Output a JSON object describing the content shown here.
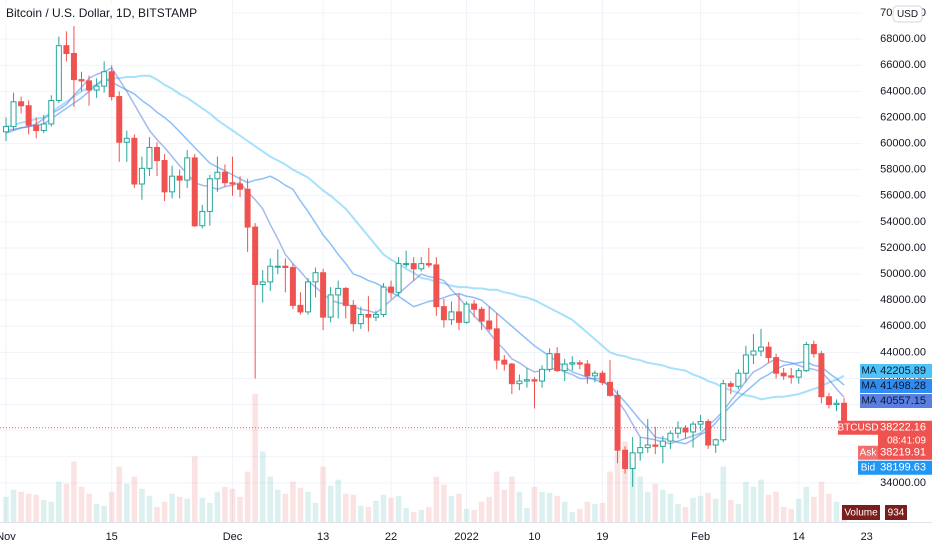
{
  "chart_data": {
    "type": "candlestick",
    "title": "Bitcoin / U.S. Dollar, 1D, BITSTAMP",
    "currency": "USD",
    "categories": [
      "Nov",
      null,
      null,
      null,
      null,
      null,
      null,
      null,
      null,
      null,
      null,
      null,
      null,
      null,
      "15",
      null,
      null,
      null,
      null,
      null,
      null,
      null,
      null,
      null,
      null,
      null,
      null,
      null,
      null,
      null,
      "Dec",
      null,
      null,
      null,
      null,
      null,
      null,
      null,
      null,
      null,
      null,
      null,
      "13",
      null,
      null,
      null,
      null,
      null,
      null,
      null,
      null,
      "22",
      null,
      null,
      null,
      null,
      null,
      null,
      null,
      null,
      null,
      "2022",
      null,
      null,
      null,
      null,
      null,
      null,
      null,
      null,
      "10",
      null,
      null,
      null,
      null,
      null,
      null,
      null,
      null,
      "19",
      null,
      null,
      null,
      null,
      null,
      null,
      null,
      null,
      null,
      null,
      null,
      null,
      "Feb",
      null,
      null,
      null,
      null,
      null,
      null,
      null,
      null,
      null,
      null,
      null,
      null,
      "14",
      null,
      null,
      null,
      null,
      null,
      null,
      null,
      null,
      "23"
    ],
    "open": [
      60900,
      61300,
      63200,
      62900,
      61400,
      61000,
      61500,
      63300,
      67500,
      66900,
      64900,
      64800,
      64100,
      64400,
      65500,
      63600,
      60100,
      60400,
      56900,
      58100,
      59700,
      58700,
      56300,
      57500,
      57200,
      58900,
      53700,
      54800,
      57300,
      57800,
      57000,
      56900,
      56500,
      53600,
      49200,
      49400,
      50600,
      50600,
      50500,
      47600,
      47100,
      49400,
      50100,
      46700,
      48400,
      48900,
      47600,
      46200,
      46900,
      46700,
      46900,
      49000,
      48600,
      50800,
      50800,
      50400,
      50800,
      50700,
      47500,
      46500,
      47100,
      46300,
      47700,
      47300,
      46400,
      45800,
      43400,
      43100,
      41600,
      41800,
      41900,
      41800,
      42700,
      43900,
      42600,
      43100,
      43200,
      43100,
      42200,
      42400,
      41700,
      40700,
      36500,
      35100,
      36300,
      36700,
      36900,
      36800,
      37200,
      37800,
      38200,
      37900,
      38500,
      38700,
      36900,
      37300,
      41600,
      41400,
      42400,
      43800,
      44100,
      44400,
      43600,
      42400,
      42200,
      42100,
      42600,
      44600,
      43900,
      40600,
      40000,
      40100,
      null,
      null,
      null
    ],
    "high": [
      62000,
      63900,
      63600,
      63300,
      62000,
      62200,
      63700,
      68200,
      68600,
      69000,
      65500,
      65200,
      65000,
      66300,
      66000,
      64000,
      61000,
      60700,
      59000,
      60500,
      60100,
      59200,
      58300,
      58000,
      59500,
      59200,
      55300,
      57600,
      59000,
      58400,
      59000,
      57500,
      57300,
      53900,
      50300,
      51200,
      51900,
      51200,
      50800,
      48600,
      49700,
      50500,
      50400,
      49000,
      49500,
      49000,
      48000,
      47500,
      48300,
      47200,
      49300,
      49500,
      51300,
      51800,
      51300,
      51300,
      52000,
      51300,
      48100,
      47900,
      48500,
      47900,
      48000,
      47500,
      47500,
      47000,
      43800,
      43200,
      42300,
      42800,
      42100,
      43000,
      44300,
      44400,
      43500,
      43700,
      43400,
      43400,
      42600,
      42600,
      43400,
      41100,
      36800,
      37500,
      37500,
      38900,
      38300,
      37600,
      38000,
      38700,
      38400,
      38700,
      39200,
      38900,
      37400,
      41900,
      41800,
      42700,
      44500,
      45400,
      45800,
      44800,
      43900,
      42800,
      42800,
      42800,
      44800,
      44900,
      44100,
      40900,
      40400,
      40500,
      null,
      null,
      null
    ],
    "low": [
      60200,
      61000,
      62300,
      60700,
      60400,
      60800,
      61300,
      63100,
      66300,
      62800,
      64000,
      62900,
      63500,
      63900,
      63300,
      58600,
      58600,
      56600,
      55700,
      57500,
      57500,
      55600,
      55800,
      55800,
      56600,
      53600,
      53500,
      53700,
      56300,
      56700,
      56000,
      55900,
      51700,
      42000,
      47800,
      48700,
      50000,
      48600,
      47300,
      46900,
      46900,
      48200,
      45700,
      46300,
      46600,
      46600,
      45600,
      45800,
      45600,
      46400,
      46700,
      48100,
      48300,
      50500,
      49500,
      50200,
      50500,
      46800,
      45900,
      46100,
      45700,
      46200,
      46700,
      45700,
      45600,
      42700,
      42600,
      40800,
      41100,
      41300,
      39700,
      41300,
      42500,
      42500,
      41800,
      42600,
      42700,
      41600,
      41700,
      41500,
      40600,
      35500,
      34700,
      33700,
      35700,
      36300,
      36200,
      35500,
      36600,
      37400,
      37400,
      36700,
      38000,
      36600,
      36300,
      37100,
      40800,
      41200,
      41700,
      43100,
      43700,
      43200,
      42000,
      41900,
      41600,
      41600,
      42500,
      43600,
      40100,
      39700,
      39500,
      38000,
      null,
      null,
      null
    ],
    "close": [
      61300,
      63200,
      62900,
      61400,
      61000,
      61500,
      63300,
      67500,
      66900,
      64900,
      64800,
      64100,
      64400,
      65500,
      63600,
      60100,
      60400,
      56900,
      58100,
      59700,
      58700,
      56300,
      57500,
      57200,
      58900,
      53700,
      54800,
      57300,
      57800,
      57000,
      56900,
      56500,
      53600,
      49200,
      49400,
      50600,
      50600,
      50500,
      47600,
      47100,
      49400,
      50100,
      46700,
      48400,
      48900,
      47600,
      46200,
      46900,
      46700,
      46900,
      49000,
      48600,
      50800,
      50800,
      50400,
      50800,
      50700,
      47500,
      46500,
      47100,
      46300,
      47700,
      47300,
      46400,
      45800,
      43400,
      43100,
      41600,
      41800,
      41900,
      41800,
      42700,
      43900,
      42600,
      43100,
      43200,
      43100,
      42200,
      42400,
      41700,
      40700,
      36500,
      35100,
      36300,
      36700,
      36900,
      36800,
      37200,
      37800,
      38200,
      37900,
      38500,
      38700,
      36900,
      37300,
      41600,
      41400,
      42400,
      43800,
      44100,
      44400,
      43600,
      42400,
      42200,
      42100,
      42600,
      44600,
      43900,
      40600,
      40000,
      40100,
      38222.16,
      null,
      null,
      null
    ],
    "volume": [
      2500,
      3200,
      3000,
      2800,
      2700,
      2200,
      2000,
      4000,
      3800,
      6000,
      3500,
      2800,
      1800,
      1600,
      3000,
      5500,
      3800,
      4500,
      3300,
      2600,
      1500,
      2000,
      2800,
      2500,
      2300,
      6500,
      2400,
      1900,
      3000,
      3500,
      3300,
      2500,
      5000,
      12700,
      7000,
      4500,
      3200,
      2800,
      4000,
      3400,
      3000,
      1900,
      5500,
      3600,
      4200,
      2800,
      2700,
      1600,
      1500,
      2100,
      2700,
      2400,
      2600,
      1400,
      1000,
      1200,
      1500,
      4500,
      3700,
      2600,
      2800,
      1300,
      1200,
      2000,
      2500,
      5000,
      3200,
      4500,
      3000,
      1400,
      3500,
      3000,
      2900,
      2600,
      2000,
      1000,
      1300,
      2000,
      1800,
      1900,
      5000,
      7000,
      8000,
      6000,
      4500,
      3000,
      3800,
      3200,
      2800,
      1800,
      1500,
      2400,
      2600,
      2900,
      2300,
      5500,
      2200,
      1800,
      4000,
      3500,
      4200,
      2700,
      3000,
      1500,
      1300,
      2300,
      3500,
      2500,
      4000,
      2800,
      2000,
      934,
      null,
      null,
      null
    ],
    "volume_label": "Volume",
    "up_color": "#26a69a",
    "down_color": "#ef5350",
    "series": [
      {
        "name": "MA",
        "color": "#4fc3f7",
        "values": [
          61300,
          61400,
          61600,
          61700,
          61900,
          62000,
          62400,
          62800,
          63200,
          63600,
          64000,
          64300,
          64500,
          64800,
          65000,
          65000,
          65100,
          65100,
          65200,
          65200,
          64900,
          64500,
          64200,
          63800,
          63500,
          63100,
          62700,
          62300,
          61800,
          61400,
          61000,
          60600,
          60200,
          59800,
          59400,
          59000,
          58700,
          58400,
          58000,
          57700,
          57400,
          56900,
          56400,
          56000,
          55500,
          55000,
          54300,
          53600,
          52900,
          52200,
          51500,
          51100,
          50800,
          50400,
          50100,
          49700,
          49600,
          49400,
          49300,
          49100,
          49000,
          49000,
          48900,
          48900,
          48800,
          48800,
          48600,
          48500,
          48300,
          48200,
          48000,
          47700,
          47400,
          47100,
          46800,
          46500,
          46000,
          45500,
          45000,
          44500,
          44000,
          43800,
          43700,
          43500,
          43400,
          43200,
          43100,
          43000,
          42800,
          42700,
          42600,
          42300,
          42100,
          41800,
          41600,
          41300,
          41100,
          40900,
          40700,
          40600,
          40400,
          40500,
          40600,
          40600,
          40700,
          40800,
          41000,
          41200,
          41400,
          41700,
          41900,
          42205.89,
          null,
          null,
          null
        ]
      },
      {
        "name": "MA",
        "color": "#2f8cf0",
        "values": [
          61000,
          61100,
          61200,
          61300,
          61400,
          61500,
          61900,
          62300,
          62700,
          63100,
          63500,
          64000,
          64500,
          65000,
          64700,
          64400,
          64100,
          63800,
          63300,
          62900,
          62400,
          62000,
          61500,
          60900,
          60300,
          59700,
          59100,
          58500,
          58200,
          57900,
          57600,
          57300,
          57000,
          57200,
          57300,
          57500,
          57200,
          56800,
          56500,
          55600,
          54800,
          53900,
          53000,
          52300,
          51500,
          50800,
          50000,
          49800,
          49500,
          49300,
          49000,
          48600,
          48300,
          47900,
          47500,
          47700,
          47900,
          48000,
          48200,
          48400,
          48500,
          48300,
          48200,
          48000,
          47500,
          47000,
          46500,
          46000,
          45500,
          45000,
          44500,
          44100,
          43700,
          43300,
          42900,
          42500,
          42300,
          42100,
          41900,
          41700,
          41500,
          40800,
          40200,
          39500,
          38800,
          38200,
          37500,
          37400,
          37300,
          37100,
          37000,
          37300,
          37700,
          38000,
          38600,
          39300,
          39900,
          40500,
          41000,
          41500,
          42000,
          42300,
          42700,
          43000,
          43100,
          43200,
          43300,
          43000,
          42900,
          42400,
          42000,
          41498.28,
          null,
          null,
          null
        ]
      },
      {
        "name": "MA",
        "color": "#5b7fe0",
        "values": [
          60800,
          61000,
          61200,
          61300,
          61500,
          61900,
          62300,
          62600,
          63000,
          63700,
          64300,
          65000,
          65300,
          65500,
          65800,
          64900,
          64000,
          63000,
          62000,
          61000,
          60300,
          59700,
          59000,
          58300,
          57700,
          57000,
          56800,
          56700,
          56500,
          56700,
          56800,
          57000,
          56300,
          55700,
          55000,
          53800,
          52700,
          51500,
          50800,
          50200,
          49500,
          49000,
          48500,
          48000,
          47800,
          47700,
          47500,
          47300,
          47200,
          47000,
          47500,
          48000,
          48500,
          49000,
          49500,
          50000,
          49800,
          49700,
          49500,
          48800,
          48200,
          47500,
          46800,
          46200,
          45500,
          44800,
          44200,
          43500,
          43200,
          42800,
          42500,
          42600,
          42700,
          42800,
          42500,
          42300,
          42000,
          42000,
          42000,
          42000,
          41200,
          40300,
          39500,
          38500,
          37500,
          37400,
          37300,
          37100,
          37000,
          37200,
          37400,
          37600,
          37800,
          38400,
          38900,
          39500,
          40300,
          41000,
          41800,
          42500,
          42800,
          43200,
          43500,
          43300,
          43200,
          43000,
          42800,
          42700,
          42500,
          41900,
          41200,
          40557.15,
          null,
          null,
          null
        ]
      }
    ],
    "last_price": {
      "symbol": "BTCUSD",
      "countdown": "08:41:09"
    },
    "ask": {
      "label": "Ask",
      "value": 38219.91
    },
    "bid": {
      "label": "Bid",
      "value": 38199.63
    },
    "ylim": [
      31000,
      71000
    ],
    "yticks": [
      {
        "value": 34000,
        "label": "34000.00"
      },
      {
        "value": 36000,
        "label": "36000.00"
      },
      {
        "value": 38000,
        "label": "38000.00"
      },
      {
        "value": 40000,
        "label": "40000.00"
      },
      {
        "value": 42000,
        "label": "42000.00"
      },
      {
        "value": 44000,
        "label": "44000.00"
      },
      {
        "value": 46000,
        "label": "46000.00"
      },
      {
        "value": 48000,
        "label": "48000.00"
      },
      {
        "value": 50000,
        "label": "50000.00"
      },
      {
        "value": 52000,
        "label": "52000.00"
      },
      {
        "value": 54000,
        "label": "54000.00"
      },
      {
        "value": 56000,
        "label": "56000.00"
      },
      {
        "value": 58000,
        "label": "58000.00"
      },
      {
        "value": 60000,
        "label": "60000.00"
      },
      {
        "value": 62000,
        "label": "62000.00"
      },
      {
        "value": 64000,
        "label": "64000.00"
      },
      {
        "value": 66000,
        "label": "66000.00"
      },
      {
        "value": 68000,
        "label": "68000.00"
      },
      {
        "value": 70000,
        "label": "70000.00"
      }
    ],
    "grid": true
  }
}
